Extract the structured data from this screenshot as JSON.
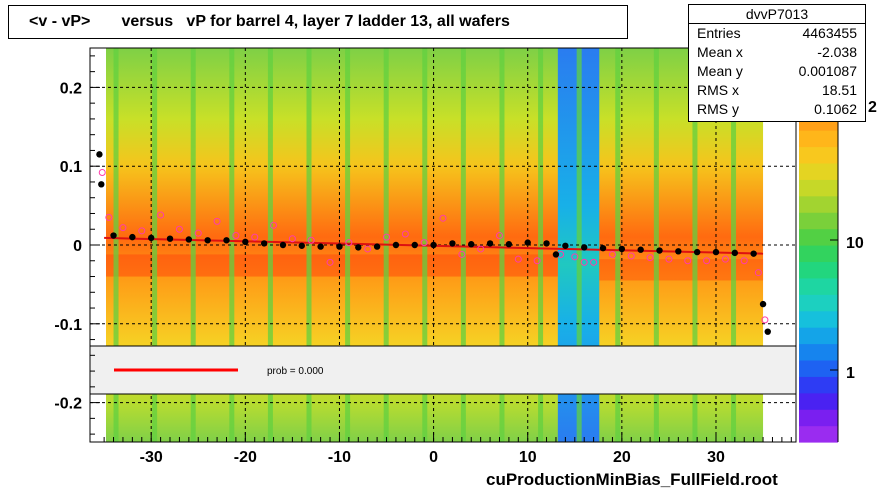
{
  "title": "<v - vP>       versus   vP for barrel 4, layer 7 ladder 13, all wafers",
  "stats": {
    "name": "dvvP7013",
    "rows": [
      {
        "label": "Entries",
        "value": "4463455"
      },
      {
        "label": "Mean x",
        "value": "-2.038"
      },
      {
        "label": "Mean y",
        "value": "0.001087"
      },
      {
        "label": "RMS x",
        "value": "18.51"
      },
      {
        "label": "RMS y",
        "value": "0.1062"
      }
    ]
  },
  "legend": {
    "text": "prob = 0.000",
    "line_color": "#ff0000"
  },
  "footer": "cuProductionMinBias_FullField.root",
  "colorbar": {
    "labels": [
      "10",
      "1"
    ],
    "partial_label": "2",
    "scale": "log"
  },
  "chart_data": {
    "type": "heatmap",
    "title": "<v - vP>       versus   vP for barrel 4, layer 7 ladder 13, all wafers",
    "xlabel": "",
    "ylabel": "",
    "xlim": [
      -36.5,
      38.5
    ],
    "ylim": [
      -0.25,
      0.25
    ],
    "x_ticks": [
      -30,
      -20,
      -10,
      0,
      10,
      20,
      30
    ],
    "x_tick_labels": [
      "-30",
      "-20",
      "-10",
      "0",
      "10",
      "20",
      "30"
    ],
    "y_ticks": [
      0.2,
      0.1,
      0,
      -0.1,
      -0.2
    ],
    "y_tick_labels": [
      "0.2",
      "0.1",
      "0",
      "-0.1",
      "-0.2"
    ],
    "grid": true,
    "fit_line": {
      "x": [
        -35,
        35
      ],
      "y": [
        0.009,
        -0.011
      ],
      "color": "#dd1111"
    },
    "profile_black": {
      "x": [
        -35.5,
        -35.3,
        -34,
        -32,
        -30,
        -28,
        -26,
        -24,
        -22,
        -20,
        -18,
        -16,
        -14,
        -12,
        -10,
        -8,
        -6,
        -4,
        -2,
        0,
        2,
        4,
        6,
        8,
        10,
        12,
        13,
        14,
        16,
        18,
        20,
        22,
        24,
        26,
        28,
        30,
        32,
        34,
        35,
        35.5
      ],
      "y": [
        0.115,
        0.077,
        0.012,
        0.01,
        0.009,
        0.008,
        0.007,
        0.006,
        0.006,
        0.004,
        0.002,
        0.0,
        -0.001,
        -0.002,
        -0.002,
        -0.003,
        -0.002,
        0.0,
        0.0,
        0.0,
        0.002,
        0.001,
        0.002,
        0.001,
        0.003,
        0.002,
        -0.012,
        -0.001,
        -0.003,
        -0.004,
        -0.005,
        -0.006,
        -0.007,
        -0.008,
        -0.009,
        -0.009,
        -0.01,
        -0.011,
        -0.075,
        -0.11
      ]
    },
    "profile_pink": {
      "x": [
        -35.2,
        -34.5,
        -33,
        -31,
        -29,
        -27,
        -25,
        -23,
        -21,
        -19,
        -17,
        -15,
        -13,
        -11,
        -9,
        -7,
        -5,
        -3,
        -1,
        1,
        3,
        5,
        7,
        9,
        11,
        13.5,
        15,
        16,
        17,
        19,
        21,
        23,
        25,
        27,
        29,
        31,
        33,
        34.5,
        35.2
      ],
      "y": [
        0.092,
        0.035,
        0.022,
        0.018,
        0.038,
        0.02,
        0.015,
        0.03,
        0.012,
        0.01,
        0.025,
        0.008,
        0.006,
        -0.022,
        0.003,
        -0.005,
        0.01,
        0.014,
        0.003,
        0.034,
        -0.012,
        -0.005,
        0.012,
        -0.018,
        -0.02,
        -0.012,
        -0.015,
        -0.022,
        -0.022,
        -0.012,
        -0.014,
        -0.016,
        -0.018,
        -0.02,
        -0.02,
        -0.018,
        -0.02,
        -0.035,
        -0.095
      ]
    }
  }
}
